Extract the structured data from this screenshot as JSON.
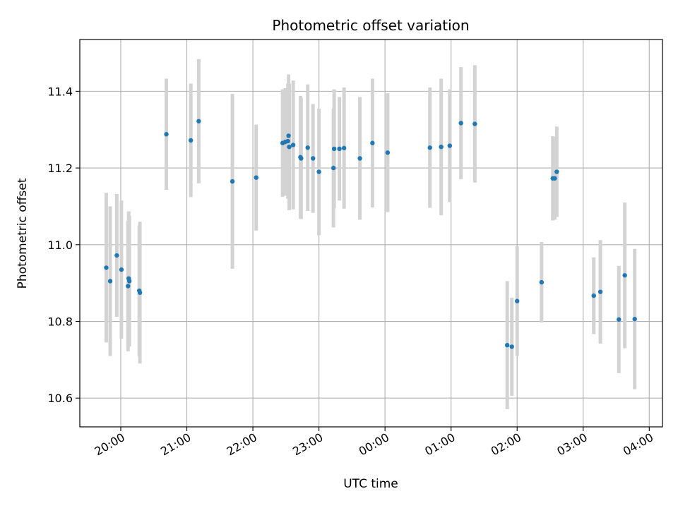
{
  "chart_data": {
    "type": "scatter",
    "title": "Photometric offset variation",
    "xlabel": "UTC time",
    "ylabel": "Photometric offset",
    "x_unit": "hours (UTC, relative to 00:00; negative = previous day)",
    "xlim": [
      -4.62,
      4.2
    ],
    "ylim": [
      10.525,
      11.535
    ],
    "grid": true,
    "x_ticks": [
      {
        "value": -4,
        "label": "20:00"
      },
      {
        "value": -3,
        "label": "21:00"
      },
      {
        "value": -2,
        "label": "22:00"
      },
      {
        "value": -1,
        "label": "23:00"
      },
      {
        "value": 0,
        "label": "00:00"
      },
      {
        "value": 1,
        "label": "01:00"
      },
      {
        "value": 2,
        "label": "02:00"
      },
      {
        "value": 3,
        "label": "03:00"
      },
      {
        "value": 4,
        "label": "04:00"
      }
    ],
    "y_ticks": [
      {
        "value": 10.6,
        "label": "10.6"
      },
      {
        "value": 10.8,
        "label": "10.8"
      },
      {
        "value": 11.0,
        "label": "11.0"
      },
      {
        "value": 11.2,
        "label": "11.2"
      },
      {
        "value": 11.4,
        "label": "11.4"
      }
    ],
    "point_color": "#1f77b4",
    "errorbar_color": "#d3d3d3",
    "points": [
      {
        "x": -4.22,
        "y": 10.94,
        "err": 0.195
      },
      {
        "x": -4.16,
        "y": 10.905,
        "err": 0.195
      },
      {
        "x": -4.06,
        "y": 10.972,
        "err": 0.16
      },
      {
        "x": -3.99,
        "y": 10.935,
        "err": 0.18
      },
      {
        "x": -3.89,
        "y": 10.892,
        "err": 0.17
      },
      {
        "x": -3.88,
        "y": 10.912,
        "err": 0.175
      },
      {
        "x": -3.87,
        "y": 10.905,
        "err": 0.17
      },
      {
        "x": -3.72,
        "y": 10.88,
        "err": 0.17
      },
      {
        "x": -3.71,
        "y": 10.875,
        "err": 0.185
      },
      {
        "x": -3.31,
        "y": 11.288,
        "err": 0.145
      },
      {
        "x": -2.94,
        "y": 11.272,
        "err": 0.148
      },
      {
        "x": -2.82,
        "y": 11.322,
        "err": 0.162
      },
      {
        "x": -2.31,
        "y": 11.165,
        "err": 0.228
      },
      {
        "x": -1.95,
        "y": 11.175,
        "err": 0.138
      },
      {
        "x": -1.55,
        "y": 11.265,
        "err": 0.14
      },
      {
        "x": -1.51,
        "y": 11.268,
        "err": 0.14
      },
      {
        "x": -1.47,
        "y": 11.27,
        "err": 0.15
      },
      {
        "x": -1.46,
        "y": 11.284,
        "err": 0.16
      },
      {
        "x": -1.45,
        "y": 11.255,
        "err": 0.165
      },
      {
        "x": -1.39,
        "y": 11.26,
        "err": 0.168
      },
      {
        "x": -1.28,
        "y": 11.228,
        "err": 0.16
      },
      {
        "x": -1.27,
        "y": 11.225,
        "err": 0.158
      },
      {
        "x": -1.17,
        "y": 11.253,
        "err": 0.165
      },
      {
        "x": -1.09,
        "y": 11.225,
        "err": 0.142
      },
      {
        "x": -1.0,
        "y": 11.19,
        "err": 0.165
      },
      {
        "x": -0.78,
        "y": 11.2,
        "err": 0.155
      },
      {
        "x": -0.77,
        "y": 11.25,
        "err": 0.155
      },
      {
        "x": -0.69,
        "y": 11.25,
        "err": 0.135
      },
      {
        "x": -0.62,
        "y": 11.252,
        "err": 0.158
      },
      {
        "x": -0.38,
        "y": 11.225,
        "err": 0.16
      },
      {
        "x": -0.19,
        "y": 11.265,
        "err": 0.168
      },
      {
        "x": 0.04,
        "y": 11.24,
        "err": 0.155
      },
      {
        "x": 0.68,
        "y": 11.253,
        "err": 0.157
      },
      {
        "x": 0.85,
        "y": 11.255,
        "err": 0.178
      },
      {
        "x": 0.98,
        "y": 11.258,
        "err": 0.147
      },
      {
        "x": 1.15,
        "y": 11.317,
        "err": 0.146
      },
      {
        "x": 1.36,
        "y": 11.315,
        "err": 0.153
      },
      {
        "x": 1.85,
        "y": 10.738,
        "err": 0.167
      },
      {
        "x": 1.92,
        "y": 10.734,
        "err": 0.128
      },
      {
        "x": 2.0,
        "y": 10.853,
        "err": 0.143
      },
      {
        "x": 2.37,
        "y": 10.902,
        "err": 0.105
      },
      {
        "x": 2.54,
        "y": 11.173,
        "err": 0.11
      },
      {
        "x": 2.57,
        "y": 11.173,
        "err": 0.108
      },
      {
        "x": 2.6,
        "y": 11.19,
        "err": 0.118
      },
      {
        "x": 3.16,
        "y": 10.867,
        "err": 0.1
      },
      {
        "x": 3.26,
        "y": 10.877,
        "err": 0.135
      },
      {
        "x": 3.54,
        "y": 10.805,
        "err": 0.14
      },
      {
        "x": 3.63,
        "y": 10.92,
        "err": 0.19
      },
      {
        "x": 3.78,
        "y": 10.806,
        "err": 0.183
      }
    ]
  }
}
